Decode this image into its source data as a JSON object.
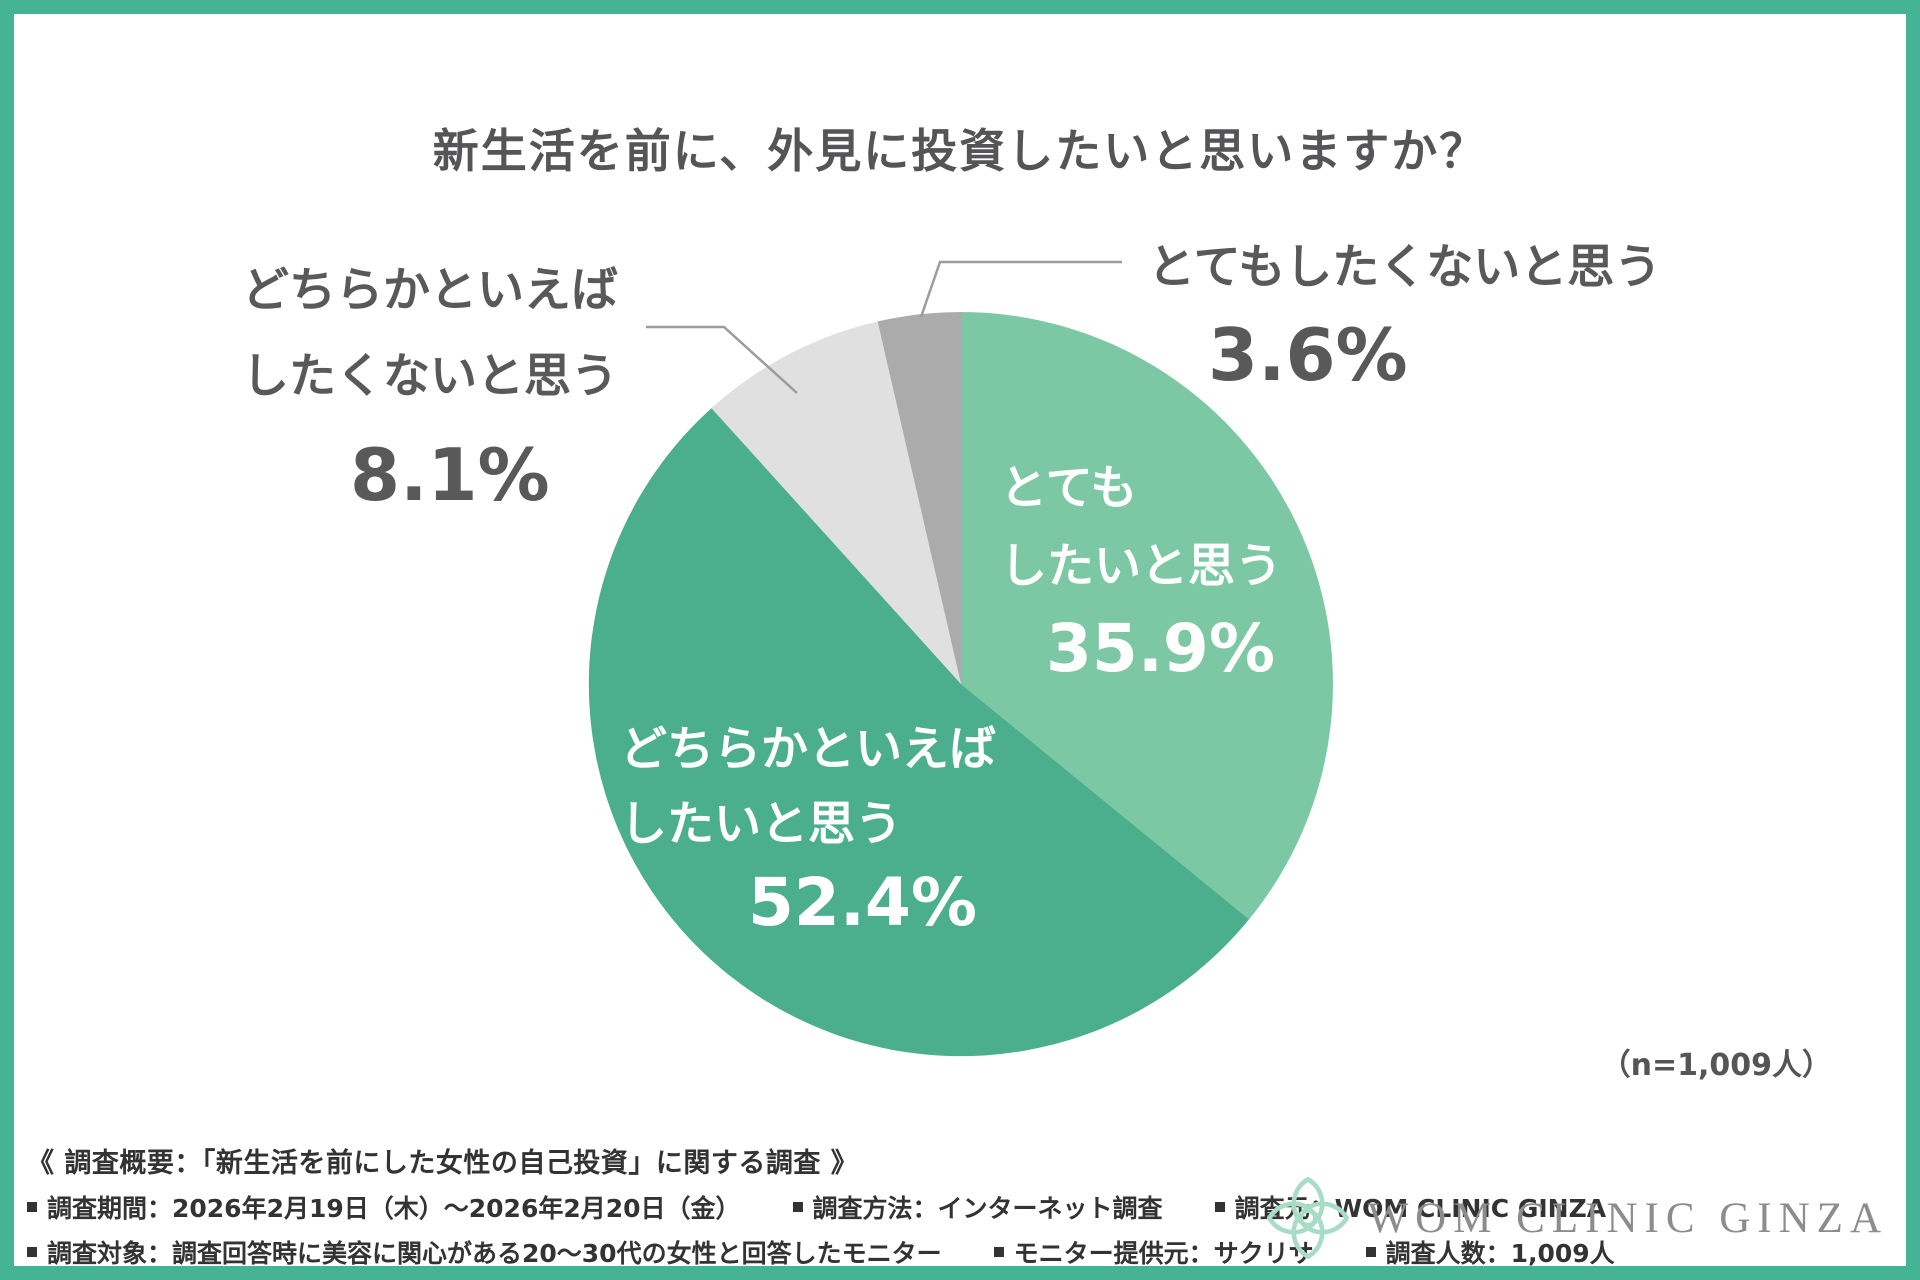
{
  "title": "新生活を前に、外見に投資したいと思いますか？",
  "sample_note": "（n=1,009人）",
  "colors": {
    "frame": "#44B495",
    "title_text": "#555558",
    "outer_label_text": "#595959",
    "leader_line": "#9C9C9C",
    "footer_text": "#333333",
    "logo_mint": "#A9DCC6",
    "logo_text": "#8C8C8C"
  },
  "chart_data": {
    "type": "pie",
    "title": "新生活を前に、外見に投資したいと思いますか？",
    "n_label": "（n=1,009人）",
    "start_angle_deg": 0,
    "direction": "clockwise",
    "legend_position": "none",
    "segments": [
      {
        "label": "とてもしたいと思う",
        "value": 35.9,
        "color": "#7CC8A4",
        "label_color": "#FFFFFF"
      },
      {
        "label": "どちらかといえばしたいと思う",
        "value": 52.4,
        "color": "#4BAF8D",
        "label_color": "#FFFFFF"
      },
      {
        "label": "どちらかといえばしたくないと思う",
        "value": 8.1,
        "color": "#E0E0E0",
        "label_color": "#595959"
      },
      {
        "label": "とてもしたくないと思う",
        "value": 3.6,
        "color": "#ABABAB",
        "label_color": "#595959"
      }
    ]
  },
  "labels": {
    "inner_primary": {
      "line1": "とても",
      "line2": "したいと思う",
      "pct": "35.9%"
    },
    "inner_secondary": {
      "line1": "どちらかといえば",
      "line2": "したいと思う",
      "pct": "52.4%"
    },
    "outer_left": {
      "line1": "どちらかといえば",
      "line2": "したくないと思う",
      "pct": "8.1%"
    },
    "outer_right": {
      "line1": "とてもしたくないと思う",
      "pct": "3.6%"
    }
  },
  "footer": {
    "heading": "《 調査概要：「新生活を前にした女性の自己投資」に関する調査 》",
    "row1": [
      "調査期間：2026年2月19日（木）〜2026年2月20日（金）",
      "調査方法：インターネット調査",
      "調査元：WOM CLINIC GINZA"
    ],
    "row2": [
      "調査対象：調査回答時に美容に関心がある20〜30代の女性と回答したモニター",
      "モニター提供元：サクリサ",
      "調査人数：1,009人"
    ]
  },
  "logo": {
    "text": "WOM CLINIC GINZA"
  }
}
